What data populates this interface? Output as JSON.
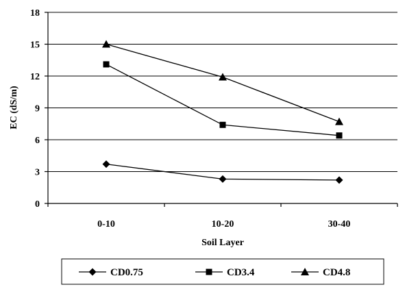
{
  "chart_data": {
    "type": "line",
    "categories": [
      "0-10",
      "10-20",
      "30-40"
    ],
    "xlabel": "Soil Layer",
    "ylabel": "EC (dS/m)",
    "ylim": [
      0,
      18
    ],
    "yticks": [
      0,
      3,
      6,
      9,
      12,
      15,
      18
    ],
    "grid": "horizontal",
    "legend_position": "bottom",
    "series": [
      {
        "name": "CD0.75",
        "marker": "diamond",
        "values": [
          3.7,
          2.3,
          2.2
        ]
      },
      {
        "name": "CD3.4",
        "marker": "square",
        "values": [
          13.1,
          7.4,
          6.4
        ]
      },
      {
        "name": "CD4.8",
        "marker": "triangle",
        "values": [
          15.0,
          11.9,
          7.7
        ]
      }
    ],
    "colors": {
      "line": "#000000",
      "grid": "#000000",
      "background": "#ffffff"
    }
  }
}
